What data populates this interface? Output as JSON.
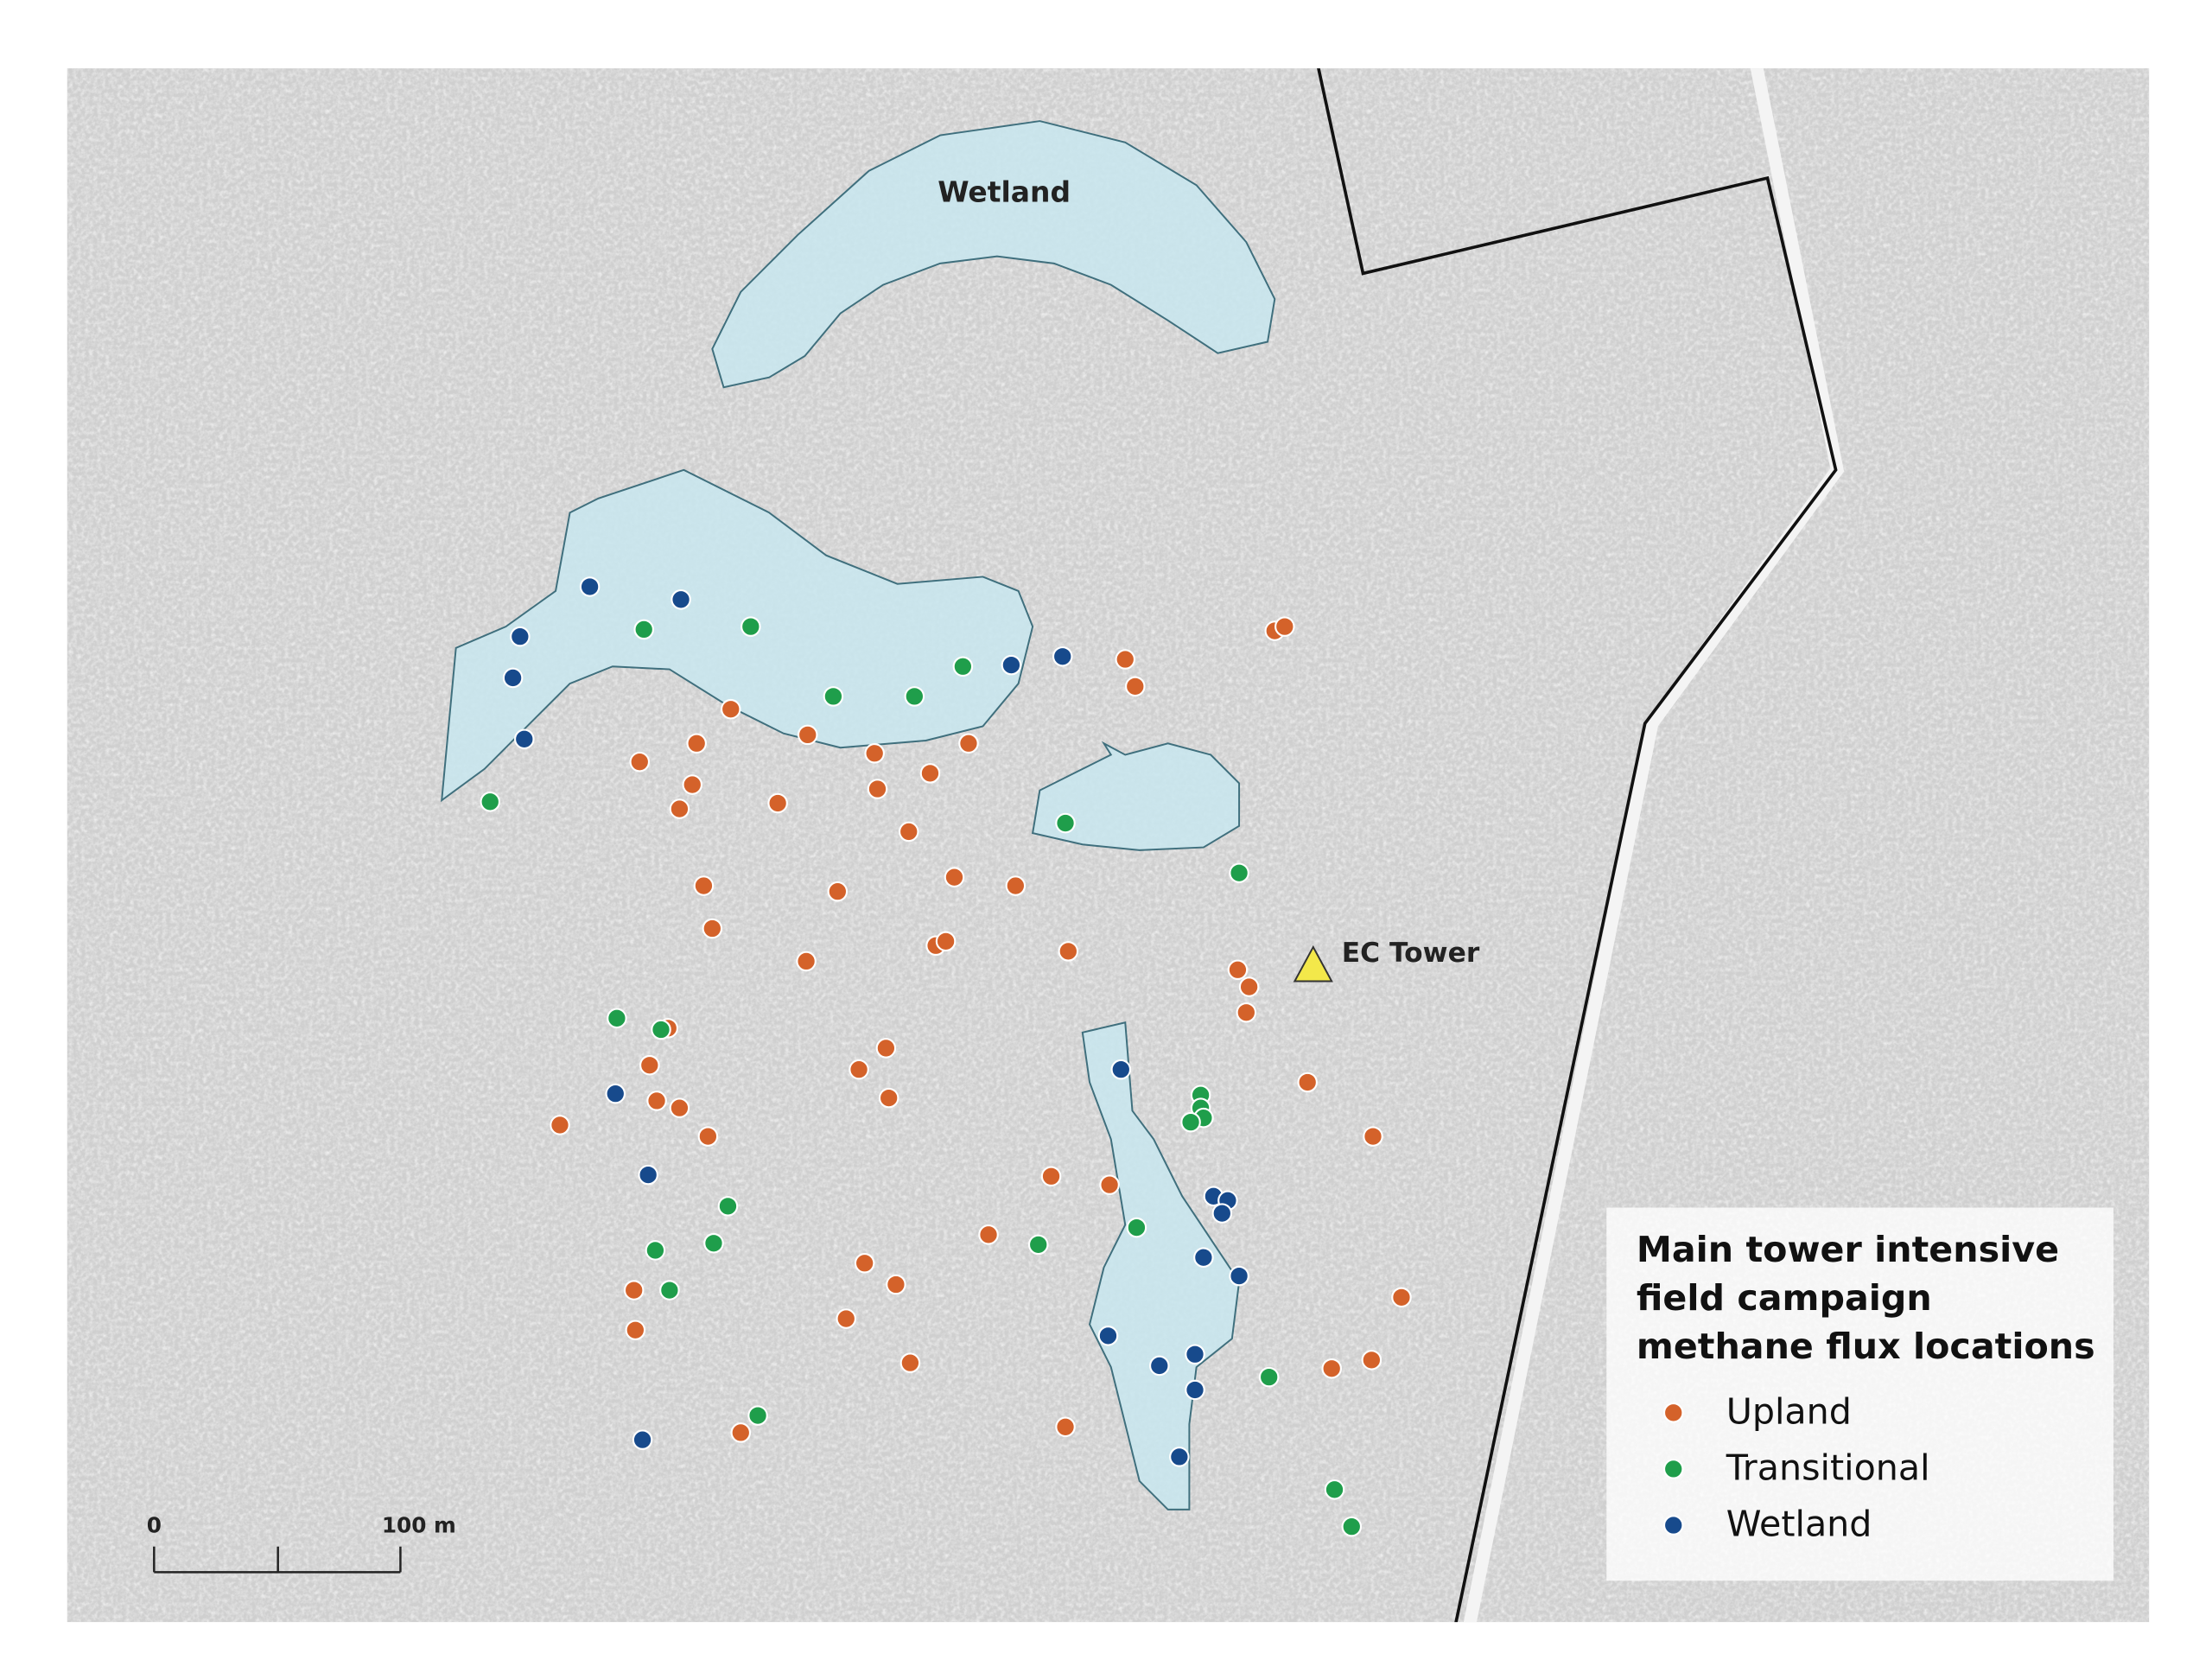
{
  "map": {
    "labels": {
      "wetland": "Wetland",
      "tower": "EC Tower"
    },
    "legend": {
      "title": "Main tower intensive field campaign methane flux locations",
      "items": [
        {
          "name": "Upland",
          "color": "#d4622a"
        },
        {
          "name": "Transitional",
          "color": "#1f9e4b"
        },
        {
          "name": "Wetland",
          "color": "#174a8c"
        }
      ]
    },
    "scale_bar": {
      "labels": [
        "0",
        "100 m"
      ]
    }
  }
}
